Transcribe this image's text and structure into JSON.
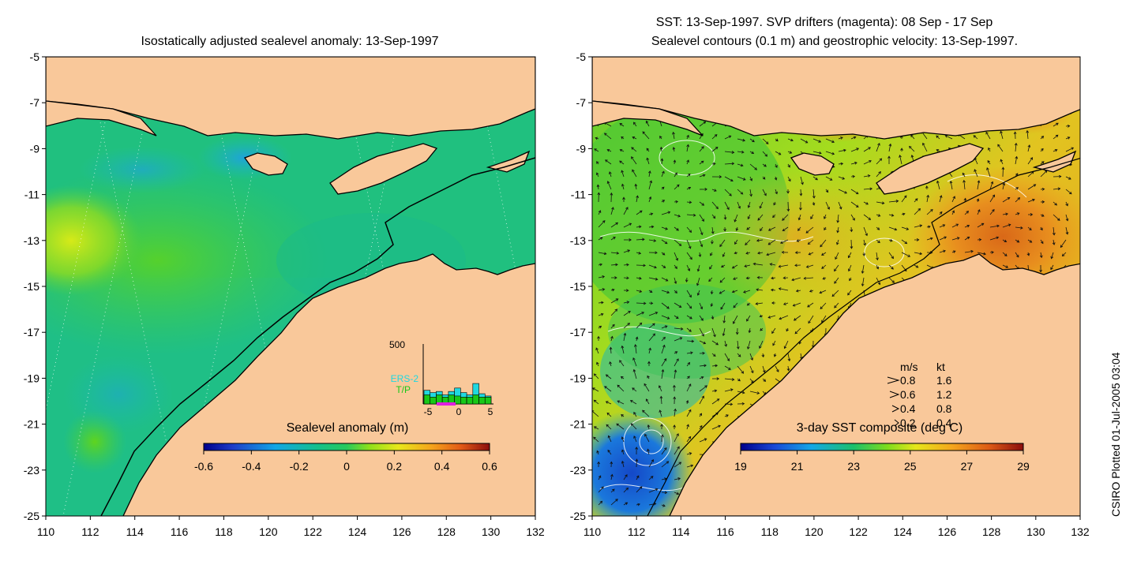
{
  "left_panel": {
    "title": "Isostatically adjusted sealevel anomaly: 13-Sep-1997",
    "colorbar": {
      "label": "Sealevel anomaly (m)",
      "ticks": [
        "-0.6",
        "-0.4",
        "-0.2",
        "0",
        "0.2",
        "0.4",
        "0.6"
      ]
    },
    "histogram": {
      "ymax_label": "500",
      "x_ticks": [
        "-5",
        "0",
        "5"
      ],
      "legend": [
        "ERS-2",
        "T/P"
      ],
      "ers2_counts": [
        120,
        100,
        110,
        80,
        110,
        140,
        100,
        80,
        180,
        90,
        70
      ],
      "tp_counts": [
        80,
        60,
        80,
        60,
        80,
        70,
        60,
        60,
        80,
        60,
        60
      ]
    }
  },
  "right_panel": {
    "title_line1": "SST: 13-Sep-1997. SVP drifters (magenta): 08 Sep - 17 Sep",
    "title_line2": "Sealevel contours (0.1 m) and geostrophic velocity: 13-Sep-1997.",
    "colorbar": {
      "label": "3-day SST composite (deg C)",
      "ticks": [
        "19",
        "21",
        "23",
        "25",
        "27",
        "29"
      ]
    },
    "velocity_legend": {
      "header_ms": "m/s",
      "header_kt": "kt",
      "rows": [
        {
          "ms": "0.8",
          "kt": "1.6"
        },
        {
          "ms": "0.6",
          "kt": "1.2"
        },
        {
          "ms": "0.4",
          "kt": "0.8"
        },
        {
          "ms": "0.2",
          "kt": "0.4"
        }
      ]
    }
  },
  "axes": {
    "lat_ticks": [
      "-5",
      "-7",
      "-9",
      "-11",
      "-13",
      "-15",
      "-17",
      "-19",
      "-21",
      "-23",
      "-25"
    ],
    "lon_ticks": [
      "110",
      "112",
      "114",
      "116",
      "118",
      "120",
      "122",
      "124",
      "126",
      "128",
      "130",
      "132"
    ]
  },
  "colors": {
    "land": "#f9c89a",
    "sla_base": "#1fbf86",
    "sst_warm": "#e88a1e",
    "sst_cool": "#1a5fd0"
  },
  "credit": "CSIRO Plotted 01-Jul-2005 03:04"
}
